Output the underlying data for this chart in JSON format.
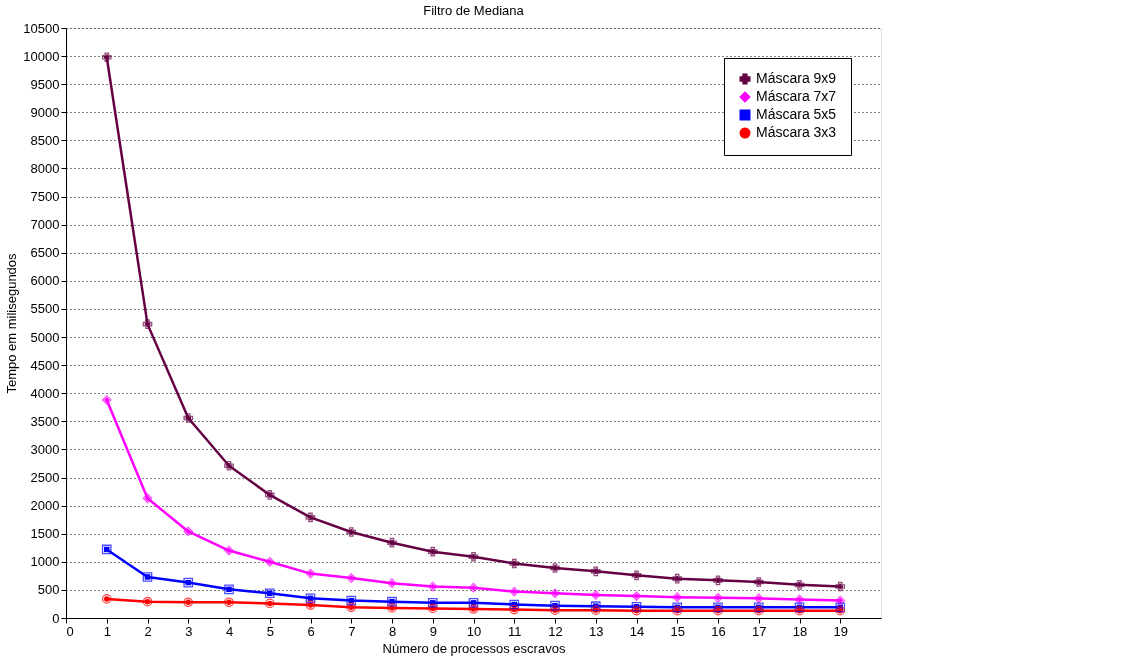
{
  "chart_data": {
    "type": "line",
    "title": "Filtro de Mediana",
    "xlabel": "Número de processos escravos",
    "ylabel": "Tempo em milisegundos",
    "x": [
      1,
      2,
      3,
      4,
      5,
      6,
      7,
      8,
      9,
      10,
      11,
      12,
      13,
      14,
      15,
      16,
      17,
      18,
      19
    ],
    "series": [
      {
        "name": "Máscara 9x9",
        "color": "#660044",
        "marker": "cross",
        "values": [
          9980,
          5230,
          3560,
          2710,
          2190,
          1790,
          1530,
          1340,
          1180,
          1090,
          970,
          890,
          830,
          760,
          700,
          670,
          640,
          590,
          560
        ]
      },
      {
        "name": "Máscara 7x7",
        "color": "#ff00ff",
        "marker": "diamond",
        "values": [
          3880,
          2130,
          1540,
          1200,
          1000,
          790,
          710,
          620,
          560,
          540,
          470,
          440,
          410,
          390,
          370,
          360,
          350,
          330,
          310
        ]
      },
      {
        "name": "Máscara 5x5",
        "color": "#0000ff",
        "marker": "square",
        "values": [
          1220,
          730,
          630,
          510,
          440,
          350,
          310,
          290,
          270,
          270,
          240,
          220,
          210,
          200,
          190,
          190,
          190,
          190,
          190
        ]
      },
      {
        "name": "Máscara 3x3",
        "color": "#ff0000",
        "marker": "circle",
        "values": [
          340,
          290,
          280,
          280,
          260,
          230,
          190,
          180,
          170,
          160,
          150,
          140,
          140,
          130,
          130,
          130,
          130,
          130,
          130
        ]
      }
    ],
    "xlim": [
      0,
      20
    ],
    "xticks": [
      0,
      1,
      2,
      3,
      4,
      5,
      6,
      7,
      8,
      9,
      10,
      11,
      12,
      13,
      14,
      15,
      16,
      17,
      18,
      19
    ],
    "ylim": [
      0,
      10500
    ],
    "yticks": [
      0,
      500,
      1000,
      1500,
      2000,
      2500,
      3000,
      3500,
      4000,
      4500,
      5000,
      5500,
      6000,
      6500,
      7000,
      7500,
      8000,
      8500,
      9000,
      9500,
      10000,
      10500
    ],
    "grid": "y",
    "legend": "top right",
    "line_style": "solid"
  }
}
